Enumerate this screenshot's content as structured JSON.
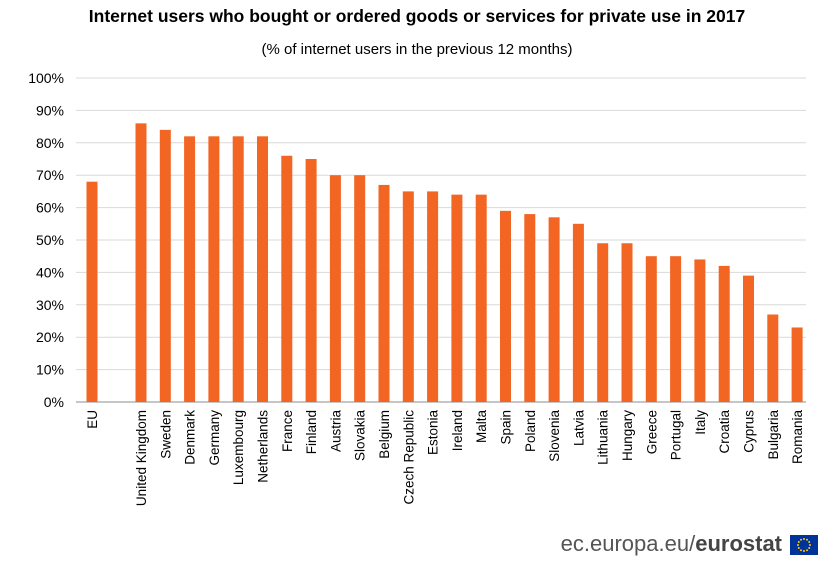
{
  "title": "Internet users who bought or ordered goods or services for private use in 2017",
  "subtitle": "(% of internet users in the previous 12 months)",
  "footer": {
    "site": "ec.europa.eu/",
    "brand": "eurostat"
  },
  "chart_data": {
    "type": "bar",
    "title": "Internet users who bought or ordered goods or services for private use in 2017",
    "subtitle": "(% of internet users in the previous 12 months)",
    "xlabel": "",
    "ylabel": "",
    "ylim": [
      0,
      100
    ],
    "yticks": [
      "0%",
      "10%",
      "20%",
      "30%",
      "40%",
      "50%",
      "60%",
      "70%",
      "80%",
      "90%",
      "100%"
    ],
    "grid": true,
    "bar_color": "#F26522",
    "categories": [
      "EU",
      "United Kingdom",
      "Sweden",
      "Denmark",
      "Germany",
      "Luxembourg",
      "Netherlands",
      "France",
      "Finland",
      "Austria",
      "Slovakia",
      "Belgium",
      "Czech Republic",
      "Estonia",
      "Ireland",
      "Malta",
      "Spain",
      "Poland",
      "Slovenia",
      "Latvia",
      "Lithuania",
      "Hungary",
      "Greece",
      "Portugal",
      "Italy",
      "Croatia",
      "Cyprus",
      "Bulgaria",
      "Romania"
    ],
    "values": [
      68,
      86,
      84,
      82,
      82,
      82,
      82,
      76,
      75,
      70,
      70,
      67,
      65,
      65,
      64,
      64,
      59,
      58,
      57,
      55,
      49,
      49,
      45,
      45,
      44,
      42,
      39,
      27,
      23
    ]
  }
}
